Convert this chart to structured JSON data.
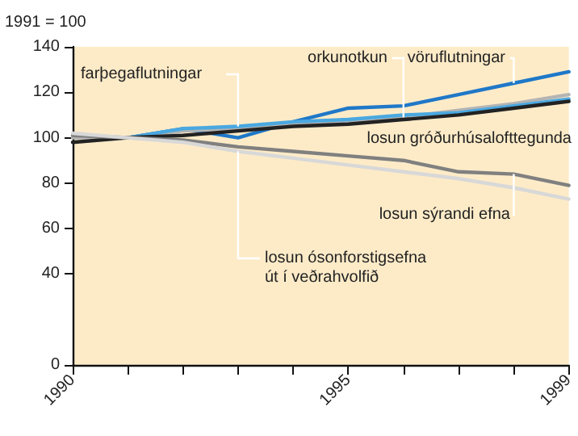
{
  "chart_data": {
    "type": "line",
    "ylabel": "1991 = 100",
    "x": [
      1990,
      1991,
      1992,
      1993,
      1994,
      1995,
      1996,
      1997,
      1998,
      1999
    ],
    "xlim": [
      1990,
      1999
    ],
    "xticks": [
      1990,
      {
        "value": 1991,
        "label": null
      },
      {
        "value": 1992,
        "label": null
      },
      {
        "value": 1993,
        "label": null
      },
      {
        "value": 1994,
        "label": null
      },
      1995,
      {
        "value": 1996,
        "label": null
      },
      {
        "value": 1997,
        "label": null
      },
      {
        "value": 1998,
        "label": null
      },
      1999
    ],
    "ylim": [
      0,
      140
    ],
    "yticks": [
      0,
      40,
      60,
      80,
      100,
      120,
      140
    ],
    "grid": false,
    "legend": false,
    "marker": "none",
    "line_style": "solid",
    "series": [
      {
        "name": "vöruflutningar",
        "color": "#1f78c8",
        "values": [
          null,
          100,
          104,
          100,
          107,
          113,
          114,
          119,
          124,
          129
        ]
      },
      {
        "name": "orkunotkun",
        "color": "#b4b4b4",
        "values": [
          100,
          100,
          103,
          104,
          106,
          107,
          109,
          112,
          115,
          119
        ]
      },
      {
        "name": "farþegaflutningar",
        "color": "#4aa8e0",
        "values": [
          null,
          100,
          104,
          105,
          107,
          108,
          110,
          111,
          114,
          117
        ]
      },
      {
        "name": "losun gróðurhúsalofttegunda",
        "color": "#222222",
        "values": [
          98,
          100,
          101,
          103,
          105,
          106,
          108,
          110,
          113,
          116
        ]
      },
      {
        "name": "losun sýrandi efna",
        "color": "#808080",
        "values": [
          101,
          100,
          99,
          96,
          94,
          92,
          90,
          85,
          84,
          79
        ]
      },
      {
        "name": "losun ósonforstigsefna\nút í veðrahvolfið",
        "color": "#d8d8d8",
        "values": [
          102,
          100,
          98,
          94,
          91,
          88,
          85,
          82,
          78,
          73
        ]
      }
    ]
  }
}
